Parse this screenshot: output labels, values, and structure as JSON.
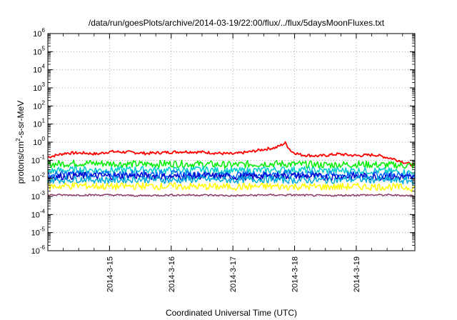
{
  "chart_data": {
    "type": "line",
    "title": "/data/run/goesPlots/archive/2014-03-19/22:00/flux/../flux/5daysMoonFluxes.txt",
    "xlabel": "Coordinated Universal Time (UTC)",
    "ylabel": {
      "base": "protons/cm",
      "sup": "2",
      "rest": "-s-sr-MeV"
    },
    "yscale": "log",
    "ylim": [
      1e-06,
      1000000.0
    ],
    "xlim": [
      14.0,
      19.95
    ],
    "y_ticks": [
      {
        "v": 1e-06,
        "b": "10",
        "e": "-6"
      },
      {
        "v": 1e-05,
        "b": "10",
        "e": "-5"
      },
      {
        "v": 0.0001,
        "b": "10",
        "e": "-4"
      },
      {
        "v": 0.001,
        "b": "10",
        "e": "-3"
      },
      {
        "v": 0.01,
        "b": "10",
        "e": "-2"
      },
      {
        "v": 0.1,
        "b": "10",
        "e": "-1"
      },
      {
        "v": 1.0,
        "b": "10",
        "e": "0"
      },
      {
        "v": 10.0,
        "b": "10",
        "e": "1"
      },
      {
        "v": 100.0,
        "b": "10",
        "e": "2"
      },
      {
        "v": 1000.0,
        "b": "10",
        "e": "3"
      },
      {
        "v": 10000.0,
        "b": "10",
        "e": "4"
      },
      {
        "v": 100000.0,
        "b": "10",
        "e": "5"
      },
      {
        "v": 1000000.0,
        "b": "10",
        "e": "6"
      }
    ],
    "x_ticks": [
      {
        "v": 15,
        "label": "2014-3-15"
      },
      {
        "v": 16,
        "label": "2014-3-16"
      },
      {
        "v": 17,
        "label": "2014-3-17"
      },
      {
        "v": 18,
        "label": "2014-3-18"
      },
      {
        "v": 19,
        "label": "2014-3-19"
      }
    ],
    "grid": true,
    "series": [
      {
        "color": "#ff0000",
        "x": [
          14.0,
          14.3,
          14.6,
          14.8,
          15.0,
          15.3,
          15.6,
          15.9,
          16.2,
          16.5,
          16.8,
          17.0,
          17.3,
          17.5,
          17.7,
          17.85,
          17.95,
          18.1,
          18.4,
          18.7,
          19.0,
          19.3,
          19.6,
          19.95
        ],
        "values": [
          0.15,
          0.25,
          0.25,
          0.22,
          0.3,
          0.28,
          0.24,
          0.27,
          0.3,
          0.28,
          0.24,
          0.22,
          0.3,
          0.4,
          0.5,
          0.9,
          0.3,
          0.2,
          0.17,
          0.22,
          0.18,
          0.2,
          0.12,
          0.05
        ]
      },
      {
        "color": "#00ee00",
        "x": [
          14.0,
          14.5,
          15.0,
          15.5,
          16.0,
          16.5,
          17.0,
          17.5,
          18.0,
          18.5,
          19.0,
          19.5,
          19.95
        ],
        "values": [
          0.06,
          0.07,
          0.065,
          0.06,
          0.065,
          0.06,
          0.055,
          0.065,
          0.06,
          0.055,
          0.06,
          0.055,
          0.05
        ]
      },
      {
        "color": "#00cccc",
        "x": [
          14.0,
          14.5,
          15.0,
          15.5,
          16.0,
          16.5,
          17.0,
          17.5,
          18.0,
          18.5,
          19.0,
          19.5,
          19.95
        ],
        "values": [
          0.025,
          0.03,
          0.028,
          0.03,
          0.027,
          0.03,
          0.025,
          0.028,
          0.03,
          0.026,
          0.027,
          0.025,
          0.02
        ]
      },
      {
        "color": "#0066ff",
        "x": [
          14.0,
          14.5,
          15.0,
          15.5,
          16.0,
          16.5,
          17.0,
          17.5,
          18.0,
          18.5,
          19.0,
          19.5,
          19.95
        ],
        "values": [
          0.015,
          0.018,
          0.016,
          0.018,
          0.017,
          0.016,
          0.015,
          0.017,
          0.018,
          0.016,
          0.015,
          0.016,
          0.014
        ]
      },
      {
        "color": "#0000cc",
        "x": [
          14.0,
          14.5,
          15.0,
          15.5,
          16.0,
          16.5,
          17.0,
          17.5,
          18.0,
          18.5,
          19.0,
          19.5,
          19.95
        ],
        "values": [
          0.012,
          0.014,
          0.013,
          0.014,
          0.012,
          0.014,
          0.012,
          0.013,
          0.014,
          0.012,
          0.013,
          0.012,
          0.011
        ]
      },
      {
        "color": "#00aadd",
        "x": [
          14.0,
          14.5,
          15.0,
          15.5,
          16.0,
          16.5,
          17.0,
          17.5,
          18.0,
          18.5,
          19.0,
          19.5,
          19.95
        ],
        "values": [
          0.008,
          0.009,
          0.008,
          0.009,
          0.008,
          0.009,
          0.008,
          0.009,
          0.008,
          0.008,
          0.009,
          0.008,
          0.007
        ]
      },
      {
        "color": "#ffff00",
        "x": [
          14.0,
          14.5,
          15.0,
          15.5,
          16.0,
          16.5,
          17.0,
          17.5,
          18.0,
          18.5,
          19.0,
          19.5,
          19.95
        ],
        "values": [
          0.0035,
          0.004,
          0.0035,
          0.0038,
          0.0036,
          0.0035,
          0.0034,
          0.0036,
          0.0035,
          0.0034,
          0.0035,
          0.0034,
          0.003
        ]
      },
      {
        "color": "#8b3a62",
        "x": [
          14.0,
          14.5,
          15.0,
          15.5,
          16.0,
          16.5,
          17.0,
          17.5,
          18.0,
          18.5,
          19.0,
          19.5,
          19.95
        ],
        "values": [
          0.0012,
          0.0012,
          0.0012,
          0.0011,
          0.0012,
          0.0012,
          0.0011,
          0.0012,
          0.0012,
          0.0011,
          0.0012,
          0.0012,
          0.0011
        ]
      }
    ]
  }
}
